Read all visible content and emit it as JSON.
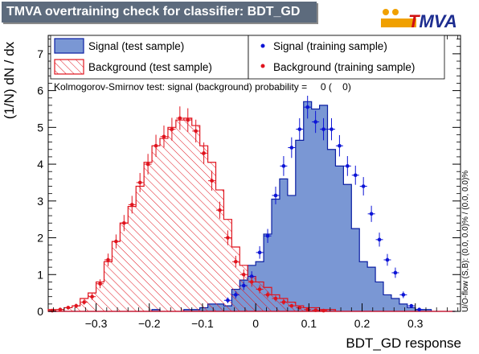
{
  "title": "TMVA overtraining check for classifier: BDT_GD",
  "logo": {
    "text": "TMVA"
  },
  "colors": {
    "signal_fill": "#7a97d4",
    "signal_line": "#0b1fa3",
    "signal_points": "#0c14d6",
    "background_line": "#e0141e",
    "background_points": "#e0141e",
    "title_bg": "#5d6b7d"
  },
  "chart_data": {
    "type": "histogram",
    "title": "TMVA overtraining check for classifier: BDT_GD",
    "xlabel": "BDT_GD response",
    "ylabel": "(1/N) dN / dx",
    "xlim": [
      -0.39,
      0.385
    ],
    "ylim": [
      0,
      7.5
    ],
    "xticks": [
      -0.3,
      -0.2,
      -0.1,
      0,
      0.1,
      0.2,
      0.3
    ],
    "xtick_labels": [
      "−0.3",
      "−0.2",
      "−0.1",
      "0",
      "0.1",
      "0.2",
      "0.3"
    ],
    "yticks": [
      0,
      1,
      2,
      3,
      4,
      5,
      6,
      7
    ],
    "ytick_labels": [
      "0",
      "1",
      "2",
      "3",
      "4",
      "5",
      "6",
      "7"
    ],
    "bin_edges": [
      -0.39,
      -0.375,
      -0.36,
      -0.345,
      -0.33,
      -0.315,
      -0.3,
      -0.285,
      -0.27,
      -0.255,
      -0.24,
      -0.225,
      -0.21,
      -0.195,
      -0.18,
      -0.165,
      -0.15,
      -0.135,
      -0.12,
      -0.105,
      -0.09,
      -0.075,
      -0.06,
      -0.045,
      -0.03,
      -0.015,
      0,
      0.015,
      0.03,
      0.045,
      0.06,
      0.075,
      0.09,
      0.105,
      0.12,
      0.135,
      0.15,
      0.165,
      0.18,
      0.195,
      0.21,
      0.225,
      0.24,
      0.255,
      0.27,
      0.285,
      0.3,
      0.315,
      0.33,
      0.345,
      0.36,
      0.375
    ],
    "series": [
      {
        "name": "Signal (test sample)",
        "style": "filled-histogram",
        "values": [
          0,
          0,
          0,
          0,
          0,
          0,
          0,
          0,
          0,
          0,
          0,
          0,
          0,
          0.05,
          0,
          0,
          0,
          0.05,
          0.05,
          0.1,
          0.2,
          0.2,
          0.15,
          0.6,
          0.85,
          1.25,
          1.35,
          2.1,
          3.05,
          3.6,
          3.15,
          4.65,
          5.7,
          5.5,
          5.6,
          4.4,
          3.95,
          3.45,
          2.25,
          1.35,
          1.2,
          0.8,
          0.45,
          0.35,
          0.2,
          0.1,
          0.05,
          0.05,
          0,
          0,
          0
        ]
      },
      {
        "name": "Background (test sample)",
        "style": "hatched-histogram",
        "values": [
          0.05,
          0.05,
          0.1,
          0.15,
          0.35,
          0.5,
          0.8,
          1.35,
          1.9,
          2.4,
          2.85,
          3.4,
          4.05,
          4.5,
          4.7,
          5.0,
          5.2,
          5.25,
          5.05,
          4.5,
          4.05,
          3.3,
          2.5,
          1.75,
          1.25,
          0.95,
          0.8,
          0.65,
          0.45,
          0.35,
          0.25,
          0.15,
          0.1,
          0.1,
          0.05,
          0.05,
          0,
          0,
          0,
          0,
          0,
          0,
          0,
          0,
          0,
          0,
          0,
          0,
          0,
          0,
          0
        ]
      },
      {
        "name": "Signal (training sample)",
        "style": "points",
        "x": [
          -0.0525,
          -0.0375,
          -0.0225,
          -0.0075,
          0.0075,
          0.0225,
          0.0375,
          0.0525,
          0.0675,
          0.0825,
          0.0975,
          0.1125,
          0.1275,
          0.1425,
          0.1575,
          0.1725,
          0.1875,
          0.2025,
          0.2175,
          0.2325,
          0.2475,
          0.2625,
          0.2775,
          0.2925,
          0.3075
        ],
        "y": [
          0.3,
          0.45,
          0.7,
          0.95,
          1.6,
          2.05,
          3.15,
          3.95,
          4.45,
          4.95,
          5.55,
          5.15,
          4.95,
          4.95,
          4.5,
          3.95,
          3.7,
          3.4,
          2.65,
          1.95,
          1.4,
          1.05,
          0.45,
          0.15,
          0.05
        ],
        "err": [
          0.08,
          0.1,
          0.12,
          0.14,
          0.17,
          0.19,
          0.24,
          0.27,
          0.28,
          0.3,
          0.31,
          0.3,
          0.3,
          0.3,
          0.29,
          0.27,
          0.26,
          0.25,
          0.22,
          0.19,
          0.16,
          0.14,
          0.09,
          0.05,
          0.03
        ]
      },
      {
        "name": "Background (training sample)",
        "style": "points",
        "x": [
          -0.3825,
          -0.3675,
          -0.3525,
          -0.3375,
          -0.3225,
          -0.3075,
          -0.2925,
          -0.2775,
          -0.2625,
          -0.2475,
          -0.2325,
          -0.2175,
          -0.2025,
          -0.1875,
          -0.1725,
          -0.1575,
          -0.1425,
          -0.1275,
          -0.1125,
          -0.0975,
          -0.0825,
          -0.0675,
          -0.0525,
          -0.0375,
          -0.0225,
          -0.0075,
          0.0075,
          0.0225,
          0.0375,
          0.0525,
          0.0675,
          0.0825,
          0.0975,
          0.1125,
          0.1275
        ],
        "y": [
          0.02,
          0.05,
          0.1,
          0.15,
          0.25,
          0.4,
          0.75,
          1.4,
          1.9,
          2.4,
          2.9,
          3.5,
          4.0,
          4.5,
          4.75,
          4.95,
          5.25,
          5.2,
          4.9,
          4.3,
          3.55,
          2.75,
          2.0,
          1.35,
          1.0,
          0.8,
          0.6,
          0.45,
          0.35,
          0.25,
          0.15,
          0.1,
          0.05,
          0.03,
          0.02
        ],
        "err": [
          0.02,
          0.03,
          0.05,
          0.06,
          0.07,
          0.09,
          0.12,
          0.17,
          0.19,
          0.22,
          0.24,
          0.26,
          0.28,
          0.3,
          0.3,
          0.31,
          0.32,
          0.32,
          0.31,
          0.29,
          0.27,
          0.23,
          0.2,
          0.16,
          0.14,
          0.13,
          0.11,
          0.09,
          0.08,
          0.07,
          0.05,
          0.04,
          0.03,
          0.02,
          0.02
        ]
      }
    ],
    "legend": {
      "placement": "top",
      "entries": [
        {
          "label": "Signal (test sample)",
          "kind": "signal-box"
        },
        {
          "label": "Background (test sample)",
          "kind": "background-box"
        },
        {
          "label": "Signal (training sample)",
          "kind": "signal-point"
        },
        {
          "label": "Background (training sample)",
          "kind": "background-point"
        }
      ]
    },
    "annotations": {
      "ks_test": "Kolmogorov-Smirnov test: signal (background) probability =     0 (    0)",
      "side_note": "U/O-flow (S,B): (0.0, 0.0)% / (0.0, 0.0)%"
    }
  }
}
